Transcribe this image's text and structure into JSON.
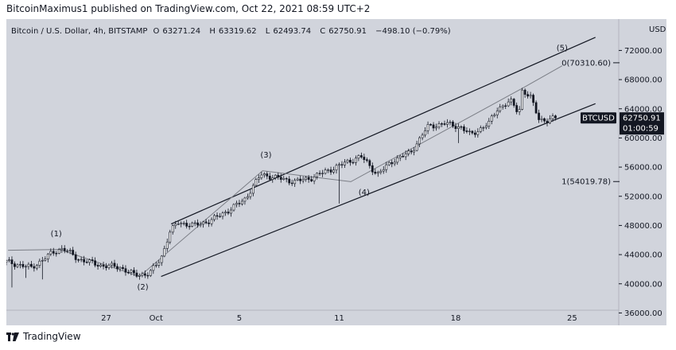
{
  "header": {
    "publisher": "BitcoinMaximus1 published on TradingView.com, Oct 22, 2021 08:59 UTC+2"
  },
  "symbol_info": {
    "name": "Bitcoin / U.S. Dollar, 4h, BITSTAMP",
    "open_prefix": "O",
    "open": "63271.24",
    "high_prefix": "H",
    "high": "63319.62",
    "low_prefix": "L",
    "low": "62493.74",
    "close_prefix": "C",
    "close": "62750.91",
    "change": "−498.10 (−0.79%)"
  },
  "price_tag": {
    "symbol": "BTCUSD",
    "price": "62750.91",
    "countdown": "01:00:59"
  },
  "footer": {
    "brand": "TradingView"
  },
  "colors": {
    "plot_bg": "#d1d4dc",
    "ink": "#131722",
    "wave_line": "#7a7d85",
    "tag_bg": "#131722",
    "tag_fg": "#ffffff"
  },
  "chart_data": {
    "type": "candlestick",
    "title": "Bitcoin / U.S. Dollar, 4h, BITSTAMP",
    "currency_label": "USD",
    "y_axis_ticks": [
      {
        "value": 36000,
        "label": "36000.00"
      },
      {
        "value": 40000,
        "label": "40000.00"
      },
      {
        "value": 44000,
        "label": "44000.00"
      },
      {
        "value": 48000,
        "label": "48000.00"
      },
      {
        "value": 52000,
        "label": "52000.00"
      },
      {
        "value": 56000,
        "label": "56000.00"
      },
      {
        "value": 60000,
        "label": "60000.00"
      },
      {
        "value": 64000,
        "label": "64000.00"
      },
      {
        "value": 68000,
        "label": "68000.00"
      },
      {
        "value": 72000,
        "label": "72000.00"
      }
    ],
    "ylim": [
      34300,
      76300
    ],
    "x_axis_ticks": [
      {
        "day": 27,
        "label": "27"
      },
      {
        "day": 30,
        "label": "Oct"
      },
      {
        "day": 35,
        "label": "5"
      },
      {
        "day": 41,
        "label": "11"
      },
      {
        "day": 48,
        "label": "18"
      },
      {
        "day": 55,
        "label": "25"
      }
    ],
    "xlim": [
      21.0,
      57.8
    ],
    "x_unit": "day (Sep 1 = 1; Oct 1 = 31)",
    "price_path": [
      [
        21.0,
        43000
      ],
      [
        22.5,
        42200
      ],
      [
        23.8,
        44300
      ],
      [
        24.4,
        44900
      ],
      [
        25.3,
        43400
      ],
      [
        26.7,
        42500
      ],
      [
        27.8,
        42300
      ],
      [
        28.7,
        41200
      ],
      [
        29.6,
        41400
      ],
      [
        30.3,
        43500
      ],
      [
        30.8,
        47000
      ],
      [
        31.3,
        48400
      ],
      [
        32.3,
        48000
      ],
      [
        33.3,
        48700
      ],
      [
        34.3,
        50000
      ],
      [
        35.3,
        51500
      ],
      [
        36.3,
        55000
      ],
      [
        37.3,
        54500
      ],
      [
        38.3,
        54000
      ],
      [
        39.3,
        54500
      ],
      [
        40.3,
        55500
      ],
      [
        41.3,
        56500
      ],
      [
        42.3,
        57500
      ],
      [
        43.3,
        55000
      ],
      [
        44.3,
        57000
      ],
      [
        45.3,
        58000
      ],
      [
        46.3,
        61500
      ],
      [
        47.3,
        62000
      ],
      [
        48.3,
        61500
      ],
      [
        48.9,
        60400
      ],
      [
        49.3,
        61000
      ],
      [
        50.0,
        62000
      ],
      [
        50.5,
        64000
      ],
      [
        51.3,
        65000
      ],
      [
        51.8,
        63500
      ],
      [
        52.0,
        66500
      ],
      [
        52.5,
        65500
      ],
      [
        53.0,
        62700
      ],
      [
        53.5,
        62300
      ],
      [
        54.0,
        62750
      ]
    ],
    "tall_wicks": [
      {
        "day": 21.4,
        "low": 39500
      },
      {
        "day": 22.2,
        "low": 40800
      },
      {
        "day": 23.1,
        "low": 40600
      },
      {
        "day": 41.0,
        "low": 51000
      },
      {
        "day": 48.1,
        "low": 59300
      }
    ],
    "channel_upper": [
      [
        30.9,
        48200
      ],
      [
        56.4,
        73800
      ]
    ],
    "channel_lower": [
      [
        30.3,
        41000
      ],
      [
        56.4,
        64700
      ]
    ],
    "wave_path": [
      [
        21.1,
        44600
      ],
      [
        24.2,
        44700
      ],
      [
        29.0,
        41000
      ],
      [
        36.4,
        55500
      ],
      [
        41.7,
        54000
      ],
      [
        52.0,
        66800
      ],
      [
        54.4,
        69900
      ]
    ],
    "wave_labels": [
      {
        "text": "(1)",
        "day": 24.0,
        "price": 46500
      },
      {
        "text": "(2)",
        "day": 29.2,
        "price": 39200
      },
      {
        "text": "(3)",
        "day": 36.6,
        "price": 57300
      },
      {
        "text": "(4)",
        "day": 42.5,
        "price": 52200
      },
      {
        "text": "(5)",
        "day": 54.4,
        "price": 72000
      }
    ],
    "fib_levels": [
      {
        "label": "0(70310.60)",
        "value": 70310.6
      },
      {
        "label": "1(54019.78)",
        "value": 54019.78
      }
    ],
    "last_price": 62750.91
  }
}
